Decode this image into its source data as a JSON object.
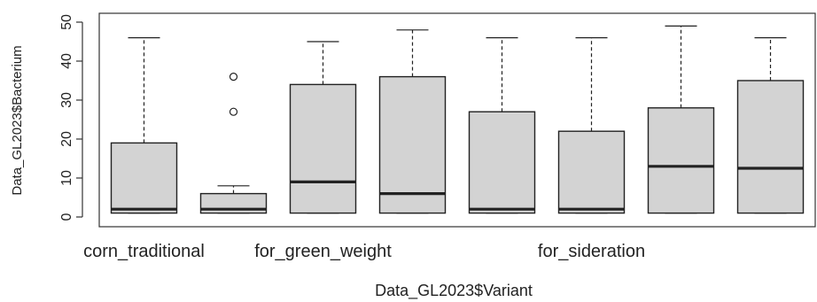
{
  "chart_data": {
    "type": "boxplot",
    "xlabel": "Data_GL2023$Variant",
    "ylabel": "Data_GL2023$Bacterium",
    "ylim": [
      0,
      50
    ],
    "yticks": [
      0,
      10,
      20,
      30,
      40,
      50
    ],
    "grid": false,
    "categories": [
      "corn_traditional",
      "",
      "for_green_weight",
      "",
      "",
      "for_sideration",
      "",
      ""
    ],
    "shown_category_labels": [
      {
        "index": 0,
        "label": "corn_traditional"
      },
      {
        "index": 2,
        "label": "for_green_weight"
      },
      {
        "index": 5,
        "label": "for_sideration"
      }
    ],
    "boxes": [
      {
        "min": 1,
        "q1": 1,
        "median": 2,
        "q3": 19,
        "max": 46,
        "outliers": []
      },
      {
        "min": 1,
        "q1": 1,
        "median": 2,
        "q3": 6,
        "max": 8,
        "outliers": [
          27,
          36
        ]
      },
      {
        "min": 1,
        "q1": 1,
        "median": 9,
        "q3": 34,
        "max": 45,
        "outliers": []
      },
      {
        "min": 1,
        "q1": 1,
        "median": 6,
        "q3": 36,
        "max": 48,
        "outliers": []
      },
      {
        "min": 1,
        "q1": 1,
        "median": 2,
        "q3": 27,
        "max": 46,
        "outliers": []
      },
      {
        "min": 1,
        "q1": 1,
        "median": 2,
        "q3": 22,
        "max": 46,
        "outliers": []
      },
      {
        "min": 1,
        "q1": 1,
        "median": 13,
        "q3": 28,
        "max": 49,
        "outliers": []
      },
      {
        "min": 1,
        "q1": 1,
        "median": 12.5,
        "q3": 35,
        "max": 46,
        "outliers": []
      }
    ],
    "colors": {
      "box_fill": "#d3d3d3",
      "stroke": "#222222"
    }
  }
}
